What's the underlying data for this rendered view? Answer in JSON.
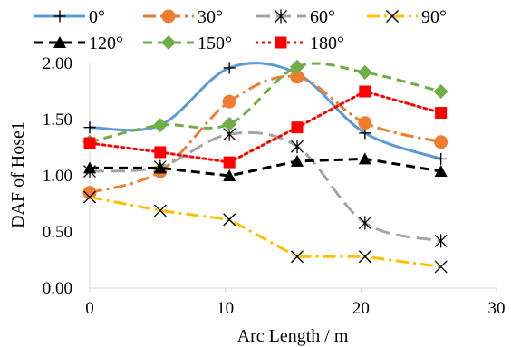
{
  "chart_data": {
    "type": "line",
    "title": "",
    "xlabel": "Arc Length / m",
    "ylabel": "DAF of Hose1",
    "xlim": [
      0,
      30
    ],
    "ylim": [
      0,
      2.0
    ],
    "xticks": [
      0,
      10,
      20,
      30
    ],
    "yticks": [
      0,
      0.5,
      1.0,
      1.5,
      2.0
    ],
    "x_tick_labels": [
      "0",
      "10",
      "20",
      "30"
    ],
    "y_tick_labels": [
      "0.00",
      "0.50",
      "1.00",
      "1.50",
      "2.00"
    ],
    "grid": "none",
    "legend_position": "top",
    "x": [
      0,
      5.2,
      10.3,
      15.3,
      20.3,
      25.9
    ],
    "series": [
      {
        "name": "0°",
        "color": "#5b9bd5",
        "marker": "plus",
        "dash": "solid",
        "smooth": true,
        "values": [
          1.43,
          1.45,
          1.96,
          1.91,
          1.38,
          1.15
        ]
      },
      {
        "name": "30°",
        "color": "#ed7d31",
        "marker": "circle",
        "dash": "dashdot",
        "smooth": true,
        "values": [
          0.85,
          1.04,
          1.66,
          1.88,
          1.47,
          1.3
        ]
      },
      {
        "name": "60°",
        "color": "#a5a5a5",
        "marker": "asterisk",
        "dash": "longdash",
        "smooth": true,
        "values": [
          1.04,
          1.08,
          1.37,
          1.26,
          0.58,
          0.42
        ]
      },
      {
        "name": "90°",
        "color": "#ffc000",
        "marker": "x",
        "dash": "dashdot",
        "smooth": false,
        "values": [
          0.81,
          0.69,
          0.61,
          0.28,
          0.28,
          0.19
        ]
      },
      {
        "name": "120°",
        "color": "#000000",
        "marker": "triangle",
        "dash": "dash",
        "smooth": false,
        "values": [
          1.07,
          1.07,
          1.0,
          1.13,
          1.15,
          1.04
        ]
      },
      {
        "name": "150°",
        "color": "#70ad47",
        "marker": "diamond",
        "dash": "dash",
        "smooth": true,
        "values": [
          1.3,
          1.45,
          1.46,
          1.97,
          1.92,
          1.75
        ]
      },
      {
        "name": "180°",
        "color": "#ff0000",
        "marker": "square",
        "dash": "dot",
        "smooth": false,
        "values": [
          1.29,
          1.21,
          1.12,
          1.43,
          1.75,
          1.56
        ]
      }
    ]
  }
}
